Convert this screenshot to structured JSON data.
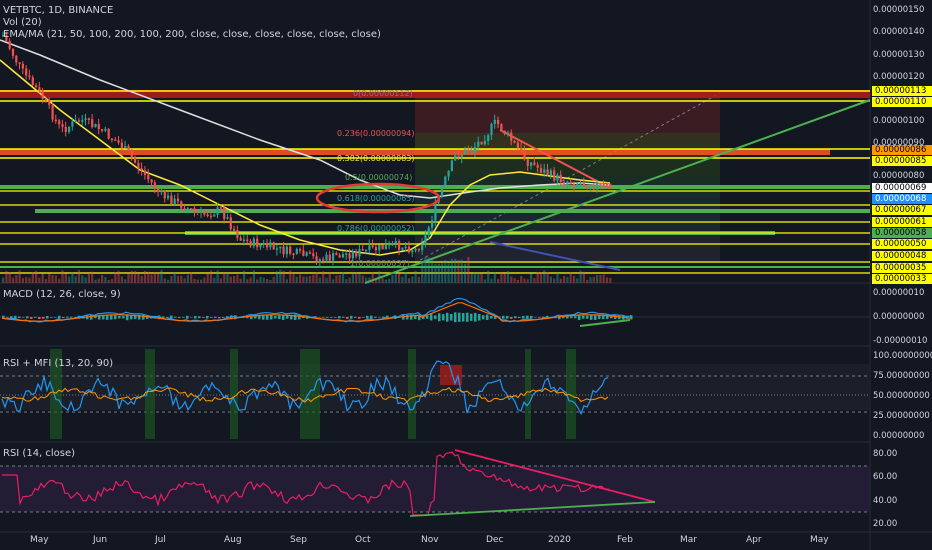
{
  "header": {
    "symbol": "VETBTC, 1D, BINANCE",
    "vol": "Vol (20)",
    "ema": "EMA/MA (21, 50, 100, 200, 100, 200, close, close, close, close, close, close)"
  },
  "panes": {
    "macd": "MACD (12, 26, close, 9)",
    "rsimfi": "RSI + MFI (13, 20, 90)",
    "rsi": "RSI (14, close)"
  },
  "fib": {
    "l0": "0(0.00000112)",
    "l236": "0.236(0.00000094)",
    "l382": "0.382(0.00000083)",
    "l5": "0.5(0.00000074)",
    "l618": "0.618(0.00000065)",
    "l786": "0.786(0.00000052)",
    "l1": "1(0.00000037)"
  },
  "price_axis": [
    "0.00000150",
    "0.00000140",
    "0.00000130",
    "0.00000120",
    "0.00000100",
    "0.00000090",
    "0.00000080"
  ],
  "price_tags": [
    {
      "text": "0.00000113",
      "color": "#ffff00"
    },
    {
      "text": "0.00000110",
      "color": "#ffff00"
    },
    {
      "text": "0.00000086",
      "color": "#ff9800"
    },
    {
      "text": "0.00000085",
      "color": "#ffff00"
    },
    {
      "text": "0.00000069",
      "color": "#ffffff"
    },
    {
      "text": "0.00000068",
      "color": "#1e90ff"
    },
    {
      "text": "0.00000067",
      "color": "#ffff00"
    },
    {
      "text": "0.00000061",
      "color": "#ffff00"
    },
    {
      "text": "0.00000058",
      "color": "#4caf50"
    },
    {
      "text": "0.00000050",
      "color": "#ffff00"
    },
    {
      "text": "0.00000048",
      "color": "#ffff00"
    },
    {
      "text": "0.00000035",
      "color": "#ffff00"
    },
    {
      "text": "0.00000033",
      "color": "#ffff00"
    }
  ],
  "macd_axis": [
    "0.00000010",
    "0.00000000",
    "-0.00000010"
  ],
  "rsimfi_axis": [
    "100.00000000",
    "75.00000000",
    "50.00000000",
    "25.00000000",
    "0.00000000"
  ],
  "rsi_axis": [
    "80.00",
    "60.00",
    "40.00",
    "20.00"
  ],
  "dates": [
    "May",
    "Jun",
    "Jul",
    "Aug",
    "Sep",
    "Oct",
    "Nov",
    "Dec",
    "2020",
    "Feb",
    "Mar",
    "Apr",
    "May"
  ],
  "colors": {
    "bg": "#131722",
    "up": "#26a69a",
    "down": "#ef5350",
    "rsi": "#e91e63",
    "fib_ellipse": "#e53935"
  }
}
